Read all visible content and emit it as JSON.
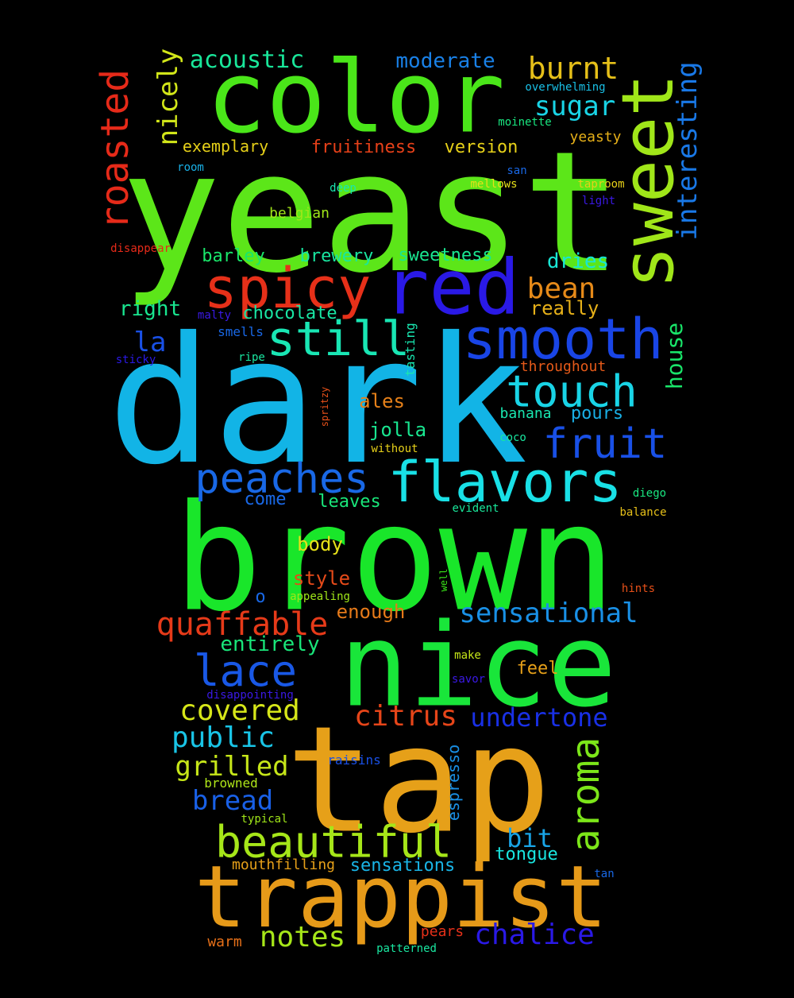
{
  "background": "#000000",
  "words": [
    {
      "text": "yeast",
      "color": "#5ce619"
    },
    {
      "text": "dark",
      "color": "#12b4e6"
    },
    {
      "text": "brown",
      "color": "#19e62a"
    },
    {
      "text": "color",
      "color": "#4ae619"
    },
    {
      "text": "tap",
      "color": "#e6a019"
    },
    {
      "text": "nice",
      "color": "#19e63a"
    },
    {
      "text": "trappist",
      "color": "#e69a19"
    },
    {
      "text": "sweet",
      "color": "#a0e619"
    },
    {
      "text": "red",
      "color": "#2a19e6"
    },
    {
      "text": "smooth",
      "color": "#1945e6"
    },
    {
      "text": "spicy",
      "color": "#e63019"
    },
    {
      "text": "flavors",
      "color": "#19e0e6"
    },
    {
      "text": "still",
      "color": "#19e6b4"
    },
    {
      "text": "peaches",
      "color": "#1968e6"
    },
    {
      "text": "touch",
      "color": "#19d4e6"
    },
    {
      "text": "fruit",
      "color": "#1950e6"
    },
    {
      "text": "beautiful",
      "color": "#a6e619"
    },
    {
      "text": "roasted",
      "color": "#e62a19"
    },
    {
      "text": "lace",
      "color": "#1958e6"
    },
    {
      "text": "aroma",
      "color": "#7ce619"
    },
    {
      "text": "interesting",
      "color": "#1978e6"
    },
    {
      "text": "quaffable",
      "color": "#e63a19"
    },
    {
      "text": "sensational",
      "color": "#1990e6"
    },
    {
      "text": "covered",
      "color": "#d6e619"
    },
    {
      "text": "citrus",
      "color": "#e64519"
    },
    {
      "text": "undertone",
      "color": "#1930e6"
    },
    {
      "text": "burnt",
      "color": "#e6c019"
    },
    {
      "text": "chalice",
      "color": "#2a19e6"
    },
    {
      "text": "notes",
      "color": "#a6e619"
    },
    {
      "text": "nicely",
      "color": "#d2e619"
    },
    {
      "text": "sugar",
      "color": "#19d4e6"
    },
    {
      "text": "public",
      "color": "#19c4e6"
    },
    {
      "text": "bread",
      "color": "#1960e6"
    },
    {
      "text": "grilled",
      "color": "#c6e619"
    },
    {
      "text": "bean",
      "color": "#e68a19"
    },
    {
      "text": "acoustic",
      "color": "#19e69a"
    },
    {
      "text": "bit",
      "color": "#19a4e6"
    },
    {
      "text": "la",
      "color": "#1950e6"
    },
    {
      "text": "house",
      "color": "#19e66a"
    },
    {
      "text": "moderate",
      "color": "#1980e6"
    },
    {
      "text": "entirely",
      "color": "#19e67a"
    },
    {
      "text": "dries",
      "color": "#19e6d4"
    },
    {
      "text": "espresso",
      "color": "#1990e6"
    },
    {
      "text": "enough",
      "color": "#e67a19"
    },
    {
      "text": "really",
      "color": "#e6b019"
    },
    {
      "text": "right",
      "color": "#19e690"
    },
    {
      "text": "ales",
      "color": "#e68019"
    },
    {
      "text": "jolla",
      "color": "#19e690"
    },
    {
      "text": "pours",
      "color": "#19b0e6"
    },
    {
      "text": "tongue",
      "color": "#19e6e0"
    },
    {
      "text": "sensations",
      "color": "#19b4e6"
    },
    {
      "text": "fruitiness",
      "color": "#e64019"
    },
    {
      "text": "version",
      "color": "#e6d019"
    },
    {
      "text": "brewery",
      "color": "#19e6a0"
    },
    {
      "text": "barley",
      "color": "#19e66a"
    },
    {
      "text": "sweetness",
      "color": "#19e690"
    },
    {
      "text": "style",
      "color": "#e64a19"
    },
    {
      "text": "body",
      "color": "#e6e019"
    },
    {
      "text": "leaves",
      "color": "#19e67a"
    },
    {
      "text": "come",
      "color": "#1968e6"
    },
    {
      "text": "chocolate",
      "color": "#19e6a4"
    },
    {
      "text": "exemplary",
      "color": "#e6d019"
    },
    {
      "text": "feel",
      "color": "#e6a019"
    },
    {
      "text": "banana",
      "color": "#19e6b0"
    },
    {
      "text": "throughout",
      "color": "#e65a19"
    },
    {
      "text": "o",
      "color": "#1968e6"
    },
    {
      "text": "pears",
      "color": "#e63019"
    },
    {
      "text": "warm",
      "color": "#e67019"
    },
    {
      "text": "mouthfilling",
      "color": "#e6a019"
    },
    {
      "text": "yeasty",
      "color": "#e6b019"
    },
    {
      "text": "tasting",
      "color": "#19e6b0"
    },
    {
      "text": "overwhelming",
      "color": "#19c0e6"
    },
    {
      "text": "belgian",
      "color": "#a0e619"
    },
    {
      "text": "smells",
      "color": "#1968e6"
    },
    {
      "text": "moinette",
      "color": "#19e680"
    },
    {
      "text": "mellows",
      "color": "#e6e019"
    },
    {
      "text": "taproom",
      "color": "#e6d019"
    },
    {
      "text": "light",
      "color": "#3a19e6"
    },
    {
      "text": "san",
      "color": "#1968e6"
    },
    {
      "text": "deep",
      "color": "#19e6b0"
    },
    {
      "text": "room",
      "color": "#19b0e6"
    },
    {
      "text": "disappear",
      "color": "#e62a19"
    },
    {
      "text": "malty",
      "color": "#3a19e6"
    },
    {
      "text": "sticky",
      "color": "#2a19e6"
    },
    {
      "text": "ripe",
      "color": "#19e6a0"
    },
    {
      "text": "spritzy",
      "color": "#e65019"
    },
    {
      "text": "without",
      "color": "#e6d019"
    },
    {
      "text": "coco",
      "color": "#19e6a0"
    },
    {
      "text": "diego",
      "color": "#19e680"
    },
    {
      "text": "evident",
      "color": "#19e69a"
    },
    {
      "text": "balance",
      "color": "#e6c019"
    },
    {
      "text": "appealing",
      "color": "#a0e619"
    },
    {
      "text": "well",
      "color": "#3ae619"
    },
    {
      "text": "hints",
      "color": "#e65019"
    },
    {
      "text": "make",
      "color": "#c6e619"
    },
    {
      "text": "savor",
      "color": "#3a19e6"
    },
    {
      "text": "disappointing",
      "color": "#3a19e6"
    },
    {
      "text": "raisins",
      "color": "#1950e6"
    },
    {
      "text": "browned",
      "color": "#b0e619"
    },
    {
      "text": "typical",
      "color": "#a0e619"
    },
    {
      "text": "tan",
      "color": "#1968e6"
    },
    {
      "text": "patterned",
      "color": "#19e6a0"
    }
  ]
}
